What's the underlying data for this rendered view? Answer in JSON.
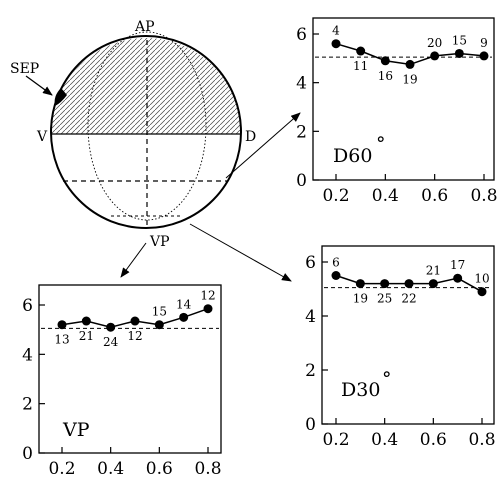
{
  "sphere": {
    "labels": {
      "top": "AP",
      "bottom": "VP",
      "left": "V",
      "right": "D",
      "marker": "SEP"
    }
  },
  "charts": {
    "d60": {
      "label": "D60",
      "degree_symbol": "°",
      "x_ticks": [
        "0.2",
        "0.4",
        "0.6",
        "0.8"
      ],
      "y_ticks": [
        "0",
        "2",
        "4",
        "6"
      ]
    },
    "d30": {
      "label": "D30",
      "degree_symbol": "°",
      "x_ticks": [
        "0.2",
        "0.4",
        "0.6",
        "0.8"
      ],
      "y_ticks": [
        "0",
        "2",
        "4",
        "6"
      ]
    },
    "vp": {
      "label": "VP",
      "x_ticks": [
        "0.2",
        "0.4",
        "0.6",
        "0.8"
      ],
      "y_ticks": [
        "0",
        "2",
        "4",
        "6"
      ]
    }
  },
  "chart_data": [
    {
      "type": "line",
      "panel": "d60",
      "x": [
        0.2,
        0.3,
        0.4,
        0.5,
        0.6,
        0.7,
        0.8
      ],
      "values": [
        5.6,
        5.3,
        4.9,
        4.75,
        5.1,
        5.2,
        5.1
      ],
      "point_labels": [
        "4",
        "11",
        "16",
        "19",
        "20",
        "15",
        "9"
      ],
      "reference_line": 5.05,
      "xlim": [
        0.15,
        0.85
      ],
      "ylim": [
        0,
        7
      ],
      "grid": false
    },
    {
      "type": "line",
      "panel": "d30",
      "x": [
        0.2,
        0.3,
        0.4,
        0.5,
        0.6,
        0.7,
        0.8
      ],
      "values": [
        5.5,
        5.2,
        5.2,
        5.2,
        5.2,
        5.4,
        4.9
      ],
      "point_labels": [
        "6",
        "19",
        "25",
        "22",
        "21",
        "17",
        "10"
      ],
      "reference_line": 5.05,
      "xlim": [
        0.15,
        0.85
      ],
      "ylim": [
        0,
        7
      ],
      "grid": false
    },
    {
      "type": "line",
      "panel": "vp",
      "x": [
        0.2,
        0.3,
        0.4,
        0.5,
        0.6,
        0.7,
        0.8
      ],
      "values": [
        5.2,
        5.35,
        5.1,
        5.35,
        5.2,
        5.5,
        5.85
      ],
      "point_labels": [
        "13",
        "21",
        "24",
        "12",
        "15",
        "14",
        "12"
      ],
      "reference_line": 5.05,
      "xlim": [
        0.15,
        0.85
      ],
      "ylim": [
        0,
        7
      ],
      "grid": false
    }
  ]
}
